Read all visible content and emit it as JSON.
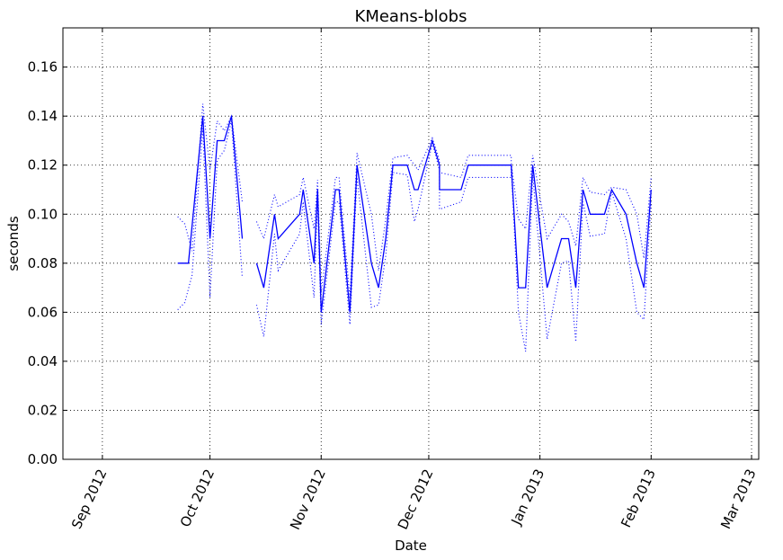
{
  "chart_data": {
    "type": "line",
    "title": "KMeans-blobs",
    "xlabel": "Date",
    "ylabel": "seconds",
    "xlim": [
      "2012-08-21",
      "2013-03-03"
    ],
    "ylim": [
      0,
      0.176
    ],
    "grid": true,
    "x_ticks": [
      {
        "date": "2012-09-01",
        "label": "Sep 2012"
      },
      {
        "date": "2012-10-01",
        "label": "Oct 2012"
      },
      {
        "date": "2012-11-01",
        "label": "Nov 2012"
      },
      {
        "date": "2012-12-01",
        "label": "Dec 2012"
      },
      {
        "date": "2013-01-01",
        "label": "Jan 2013"
      },
      {
        "date": "2013-02-01",
        "label": "Feb 2013"
      },
      {
        "date": "2013-03-01",
        "label": "Mar 2013"
      }
    ],
    "y_ticks": [
      "0.00",
      "0.02",
      "0.04",
      "0.06",
      "0.08",
      "0.10",
      "0.12",
      "0.14",
      "0.16"
    ],
    "series": [
      {
        "style": "solid",
        "color": "#0000ff",
        "segments": [
          [
            [
              "2012-09-22",
              0.08
            ],
            [
              "2012-09-25",
              0.08
            ],
            [
              "2012-09-29",
              0.14
            ],
            [
              "2012-10-01",
              0.09
            ],
            [
              "2012-10-03",
              0.13
            ],
            [
              "2012-10-05",
              0.13
            ],
            [
              "2012-10-07",
              0.14
            ],
            [
              "2012-10-10",
              0.09
            ]
          ],
          [
            [
              "2012-10-14",
              0.08
            ],
            [
              "2012-10-16",
              0.07
            ],
            [
              "2012-10-19",
              0.1
            ],
            [
              "2012-10-20",
              0.09
            ],
            [
              "2012-10-26",
              0.1
            ],
            [
              "2012-10-27",
              0.11
            ],
            [
              "2012-10-30",
              0.08
            ],
            [
              "2012-10-31",
              0.11
            ],
            [
              "2012-11-01",
              0.06
            ],
            [
              "2012-11-05",
              0.11
            ],
            [
              "2012-11-06",
              0.11
            ],
            [
              "2012-11-09",
              0.06
            ],
            [
              "2012-11-11",
              0.12
            ],
            [
              "2012-11-15",
              0.08
            ],
            [
              "2012-11-17",
              0.07
            ],
            [
              "2012-11-19",
              0.09
            ],
            [
              "2012-11-21",
              0.12
            ],
            [
              "2012-11-25",
              0.12
            ],
            [
              "2012-11-27",
              0.11
            ],
            [
              "2012-11-28",
              0.11
            ],
            [
              "2012-12-02",
              0.13
            ],
            [
              "2012-12-04",
              0.12
            ],
            [
              "2012-12-04",
              0.11
            ],
            [
              "2012-12-10",
              0.11
            ],
            [
              "2012-12-12",
              0.12
            ],
            [
              "2012-12-24",
              0.12
            ],
            [
              "2012-12-24",
              0.12
            ],
            [
              "2012-12-26",
              0.07
            ],
            [
              "2012-12-28",
              0.07
            ],
            [
              "2012-12-30",
              0.12
            ],
            [
              "2013-01-03",
              0.07
            ],
            [
              "2013-01-07",
              0.09
            ],
            [
              "2013-01-09",
              0.09
            ],
            [
              "2013-01-11",
              0.07
            ],
            [
              "2013-01-13",
              0.11
            ],
            [
              "2013-01-15",
              0.1
            ],
            [
              "2013-01-19",
              0.1
            ],
            [
              "2013-01-21",
              0.11
            ],
            [
              "2013-01-25",
              0.1
            ],
            [
              "2013-01-28",
              0.08
            ],
            [
              "2013-01-30",
              0.07
            ],
            [
              "2013-02-01",
              0.11
            ]
          ]
        ]
      },
      {
        "style": "dotted",
        "color": "#0000ff",
        "segments": [
          [
            [
              "2012-09-22",
              0.099
            ],
            [
              "2012-09-24",
              0.096
            ],
            [
              "2012-09-26",
              0.085
            ],
            [
              "2012-09-29",
              0.145
            ],
            [
              "2012-10-01",
              0.118
            ],
            [
              "2012-10-03",
              0.138
            ],
            [
              "2012-10-05",
              0.134
            ],
            [
              "2012-10-07",
              0.14
            ],
            [
              "2012-10-10",
              0.105
            ]
          ],
          [
            [
              "2012-10-14",
              0.097
            ],
            [
              "2012-10-16",
              0.09
            ],
            [
              "2012-10-19",
              0.108
            ],
            [
              "2012-10-20",
              0.103
            ],
            [
              "2012-10-26",
              0.108
            ],
            [
              "2012-10-27",
              0.115
            ],
            [
              "2012-10-30",
              0.094
            ],
            [
              "2012-10-31",
              0.114
            ],
            [
              "2012-11-01",
              0.068
            ],
            [
              "2012-11-05",
              0.115
            ],
            [
              "2012-11-06",
              0.115
            ],
            [
              "2012-11-09",
              0.066
            ],
            [
              "2012-11-11",
              0.125
            ],
            [
              "2012-11-15",
              0.1
            ],
            [
              "2012-11-17",
              0.077
            ],
            [
              "2012-11-19",
              0.098
            ],
            [
              "2012-11-21",
              0.123
            ],
            [
              "2012-11-25",
              0.124
            ],
            [
              "2012-11-27",
              0.12
            ],
            [
              "2012-11-28",
              0.118
            ],
            [
              "2012-12-02",
              0.131
            ],
            [
              "2012-12-04",
              0.122
            ],
            [
              "2012-12-04",
              0.117
            ],
            [
              "2012-12-10",
              0.115
            ],
            [
              "2012-12-12",
              0.124
            ],
            [
              "2012-12-24",
              0.124
            ],
            [
              "2012-12-24",
              0.121
            ],
            [
              "2012-12-26",
              0.098
            ],
            [
              "2012-12-28",
              0.094
            ],
            [
              "2012-12-30",
              0.124
            ],
            [
              "2013-01-03",
              0.09
            ],
            [
              "2013-01-07",
              0.1
            ],
            [
              "2013-01-09",
              0.097
            ],
            [
              "2013-01-11",
              0.087
            ],
            [
              "2013-01-13",
              0.115
            ],
            [
              "2013-01-15",
              0.109
            ],
            [
              "2013-01-19",
              0.108
            ],
            [
              "2013-01-21",
              0.111
            ],
            [
              "2013-01-25",
              0.11
            ],
            [
              "2013-01-28",
              0.1
            ],
            [
              "2013-01-30",
              0.082
            ],
            [
              "2013-02-01",
              0.115
            ]
          ]
        ]
      },
      {
        "style": "dotted",
        "color": "#0000ff",
        "segments": [
          [
            [
              "2012-09-22",
              0.061
            ],
            [
              "2012-09-24",
              0.064
            ],
            [
              "2012-09-26",
              0.075
            ],
            [
              "2012-09-29",
              0.135
            ],
            [
              "2012-10-01",
              0.066
            ],
            [
              "2012-10-03",
              0.122
            ],
            [
              "2012-10-05",
              0.126
            ],
            [
              "2012-10-07",
              0.138
            ],
            [
              "2012-10-10",
              0.074
            ]
          ],
          [
            [
              "2012-10-14",
              0.063
            ],
            [
              "2012-10-16",
              0.05
            ],
            [
              "2012-10-19",
              0.092
            ],
            [
              "2012-10-20",
              0.077
            ],
            [
              "2012-10-26",
              0.092
            ],
            [
              "2012-10-27",
              0.105
            ],
            [
              "2012-10-30",
              0.066
            ],
            [
              "2012-10-31",
              0.106
            ],
            [
              "2012-11-01",
              0.055
            ],
            [
              "2012-11-05",
              0.105
            ],
            [
              "2012-11-06",
              0.105
            ],
            [
              "2012-11-09",
              0.055
            ],
            [
              "2012-11-11",
              0.115
            ],
            [
              "2012-11-15",
              0.062
            ],
            [
              "2012-11-17",
              0.063
            ],
            [
              "2012-11-19",
              0.083
            ],
            [
              "2012-11-21",
              0.117
            ],
            [
              "2012-11-25",
              0.116
            ],
            [
              "2012-11-27",
              0.097
            ],
            [
              "2012-11-28",
              0.102
            ],
            [
              "2012-12-02",
              0.129
            ],
            [
              "2012-12-04",
              0.118
            ],
            [
              "2012-12-04",
              0.102
            ],
            [
              "2012-12-10",
              0.105
            ],
            [
              "2012-12-12",
              0.115
            ],
            [
              "2012-12-24",
              0.115
            ],
            [
              "2012-12-24",
              0.119
            ],
            [
              "2012-12-26",
              0.06
            ],
            [
              "2012-12-28",
              0.044
            ],
            [
              "2012-12-30",
              0.116
            ],
            [
              "2013-01-03",
              0.049
            ],
            [
              "2013-01-07",
              0.08
            ],
            [
              "2013-01-09",
              0.081
            ],
            [
              "2013-01-11",
              0.048
            ],
            [
              "2013-01-13",
              0.105
            ],
            [
              "2013-01-15",
              0.091
            ],
            [
              "2013-01-19",
              0.092
            ],
            [
              "2013-01-21",
              0.109
            ],
            [
              "2013-01-25",
              0.09
            ],
            [
              "2013-01-28",
              0.06
            ],
            [
              "2013-01-30",
              0.057
            ],
            [
              "2013-02-01",
              0.105
            ]
          ]
        ]
      }
    ]
  }
}
